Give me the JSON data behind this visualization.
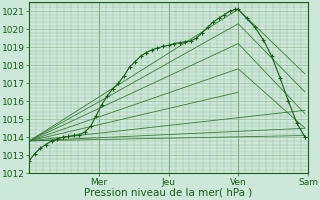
{
  "background_color": "#cce8d8",
  "grid_color": "#99bb99",
  "line_color_main": "#1a5c1a",
  "line_color_light": "#3a7a3a",
  "ylabel": "Pression niveau de la mer( hPa )",
  "ylim": [
    1012,
    1021.5
  ],
  "yticks": [
    1012,
    1013,
    1014,
    1015,
    1016,
    1017,
    1018,
    1019,
    1020,
    1021
  ],
  "day_labels": [
    "Mer",
    "Jeu",
    "Ven",
    "Sam"
  ],
  "day_positions": [
    0.25,
    0.5,
    0.75,
    1.0
  ],
  "xlim": [
    0.0,
    1.0
  ],
  "tick_fontsize": 6.5,
  "xlabel_fontsize": 7.5,
  "main_line": {
    "x": [
      0.0,
      0.02,
      0.04,
      0.06,
      0.08,
      0.1,
      0.12,
      0.14,
      0.16,
      0.18,
      0.2,
      0.22,
      0.24,
      0.26,
      0.28,
      0.3,
      0.32,
      0.34,
      0.36,
      0.38,
      0.4,
      0.42,
      0.44,
      0.46,
      0.48,
      0.5,
      0.52,
      0.54,
      0.56,
      0.58,
      0.6,
      0.62,
      0.64,
      0.66,
      0.68,
      0.7,
      0.72,
      0.74,
      0.75,
      0.78,
      0.81,
      0.84,
      0.87,
      0.9,
      0.93,
      0.96,
      0.99
    ],
    "y": [
      1012.7,
      1013.1,
      1013.4,
      1013.6,
      1013.8,
      1013.9,
      1014.0,
      1014.05,
      1014.1,
      1014.15,
      1014.3,
      1014.6,
      1015.2,
      1015.8,
      1016.3,
      1016.7,
      1017.0,
      1017.4,
      1017.9,
      1018.2,
      1018.5,
      1018.7,
      1018.85,
      1018.95,
      1019.05,
      1019.1,
      1019.2,
      1019.25,
      1019.3,
      1019.35,
      1019.5,
      1019.8,
      1020.1,
      1020.4,
      1020.6,
      1020.8,
      1021.0,
      1021.1,
      1021.1,
      1020.6,
      1020.1,
      1019.4,
      1018.5,
      1017.3,
      1016.0,
      1014.8,
      1014.0
    ]
  },
  "fan_lines": [
    {
      "x": [
        0.0,
        0.75
      ],
      "y": [
        1013.8,
        1021.1
      ]
    },
    {
      "x": [
        0.0,
        0.75
      ],
      "y": [
        1013.8,
        1020.3
      ]
    },
    {
      "x": [
        0.0,
        0.75
      ],
      "y": [
        1013.8,
        1019.2
      ]
    },
    {
      "x": [
        0.0,
        0.75
      ],
      "y": [
        1013.8,
        1017.8
      ]
    },
    {
      "x": [
        0.0,
        0.75
      ],
      "y": [
        1013.8,
        1016.5
      ]
    },
    {
      "x": [
        0.0,
        0.99
      ],
      "y": [
        1013.8,
        1015.5
      ]
    },
    {
      "x": [
        0.0,
        0.99
      ],
      "y": [
        1013.8,
        1014.5
      ]
    },
    {
      "x": [
        0.0,
        0.99
      ],
      "y": [
        1013.8,
        1014.1
      ]
    }
  ],
  "fan_lines_right": [
    {
      "x": [
        0.75,
        0.99
      ],
      "y": [
        1021.1,
        1017.5
      ]
    },
    {
      "x": [
        0.75,
        0.99
      ],
      "y": [
        1020.3,
        1016.5
      ]
    },
    {
      "x": [
        0.75,
        0.99
      ],
      "y": [
        1019.2,
        1015.3
      ]
    },
    {
      "x": [
        0.75,
        0.99
      ],
      "y": [
        1017.8,
        1014.5
      ]
    }
  ]
}
